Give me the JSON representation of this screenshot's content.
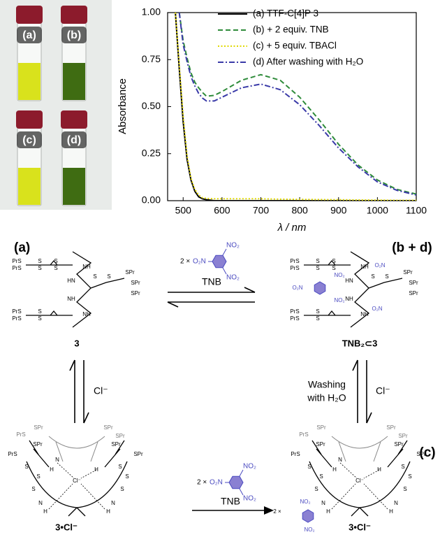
{
  "chart_data": {
    "type": "line",
    "xlabel": "λ / nm",
    "ylabel": "Absorbance",
    "x": [
      480,
      490,
      500,
      510,
      520,
      530,
      540,
      550,
      560,
      580,
      600,
      650,
      700,
      750,
      800,
      850,
      900,
      950,
      1000,
      1050,
      1100
    ],
    "series": [
      {
        "name": "(a) TTF-C[4]P 3",
        "color": "#000000",
        "style": "solid",
        "values": [
          1.0,
          0.7,
          0.42,
          0.22,
          0.11,
          0.05,
          0.02,
          0.01,
          0.005,
          0,
          0,
          0,
          0,
          0,
          0,
          0,
          0,
          0,
          0,
          0,
          0
        ]
      },
      {
        "name": "(b) + 2 equiv. TNB",
        "color": "#2e8b3a",
        "style": "dashed",
        "values": [
          null,
          1.0,
          0.85,
          0.76,
          0.68,
          0.63,
          0.6,
          0.575,
          0.555,
          0.56,
          0.58,
          0.64,
          0.67,
          0.64,
          0.55,
          0.43,
          0.3,
          0.19,
          0.11,
          0.06,
          0.035
        ]
      },
      {
        "name": "(c) + 5 equiv. TBACl",
        "color": "#e0d800",
        "style": "dotted",
        "values": [
          1.0,
          0.72,
          0.45,
          0.24,
          0.12,
          0.06,
          0.03,
          0.015,
          0.012,
          0.01,
          0.01,
          0.01,
          0.01,
          0.008,
          0.007,
          0.006,
          0.005,
          0.004,
          0.003,
          0.002,
          0.002
        ]
      },
      {
        "name": "(d) After washing with H₂O",
        "color": "#3a3aa8",
        "style": "dashdot",
        "values": [
          null,
          1.0,
          0.83,
          0.74,
          0.66,
          0.61,
          0.57,
          0.545,
          0.53,
          0.53,
          0.55,
          0.6,
          0.62,
          0.59,
          0.51,
          0.4,
          0.28,
          0.18,
          0.1,
          0.055,
          0.03
        ]
      }
    ],
    "xlim": [
      460,
      1100
    ],
    "xticks": [
      500,
      600,
      700,
      800,
      900,
      1000,
      1100
    ],
    "ylim": [
      0,
      1
    ],
    "yticks": [
      {
        "value": 0,
        "label": "0.00"
      },
      0.25,
      {
        "value": 0.5,
        "label": "0.50"
      },
      0.75,
      {
        "value": 1,
        "label": "1.00"
      }
    ],
    "grid": false,
    "legend": "upper right"
  },
  "photo": {
    "labels": [
      "(a)",
      "(b)",
      "(c)",
      "(d)"
    ]
  },
  "scheme": {
    "panel_labels": [
      "(a)",
      "(b + d)",
      "(c)"
    ],
    "compounds": [
      {
        "name": "3",
        "atoms": [
          "PrS",
          "PrS",
          "S",
          "S",
          "S",
          "S",
          "NH",
          "HN",
          "S",
          "S",
          "SPr",
          "SPr",
          "SPr",
          "NH",
          "PrS",
          "PrS",
          "S",
          "S",
          "NH"
        ]
      },
      {
        "name": "TNB₂⊂3",
        "atoms": [
          "PrS",
          "PrS",
          "S",
          "S",
          "S",
          "S",
          "NH",
          "HN",
          "S",
          "S",
          "SPr",
          "SPr",
          "SPr",
          "NH",
          "PrS",
          "PrS",
          "S",
          "S",
          "NH",
          "O₂N",
          "NO₂",
          "NO₂",
          "O₂N",
          "O₂N"
        ]
      },
      {
        "name": "3•Cl⁻",
        "atoms": [
          "PrS",
          "SPr",
          "SPr",
          "SPr",
          "PrS",
          "SPr",
          "SPr",
          "SPr",
          "S",
          "S",
          "S",
          "S",
          "N",
          "H",
          "H",
          "Cl⁻",
          "H",
          "N",
          "H",
          "N",
          "S",
          "S"
        ]
      },
      {
        "name": "3•Cl⁻",
        "atoms": [
          "PrS",
          "SPr",
          "SPr",
          "SPr",
          "PrS",
          "SPr",
          "SPr",
          "SPr",
          "S",
          "S",
          "S",
          "S",
          "N",
          "H",
          "H",
          "Cl⁻",
          "H",
          "N",
          "H",
          "N",
          "S",
          "S",
          "2 ×",
          "NO₂",
          "NO₂"
        ]
      }
    ],
    "reagents": [
      {
        "prefix": "2 ×",
        "groups": [
          "O₂N",
          "NO₂",
          "NO₂"
        ]
      },
      {
        "prefix": "2 ×",
        "groups": [
          "O₂N",
          "NO₂",
          "NO₂"
        ]
      }
    ],
    "arrows": {
      "top": "TNB",
      "left": "Cl⁻",
      "right_lines": [
        "Washing",
        "with H₂O"
      ],
      "right": "Cl⁻",
      "bottom": "TNB"
    }
  }
}
